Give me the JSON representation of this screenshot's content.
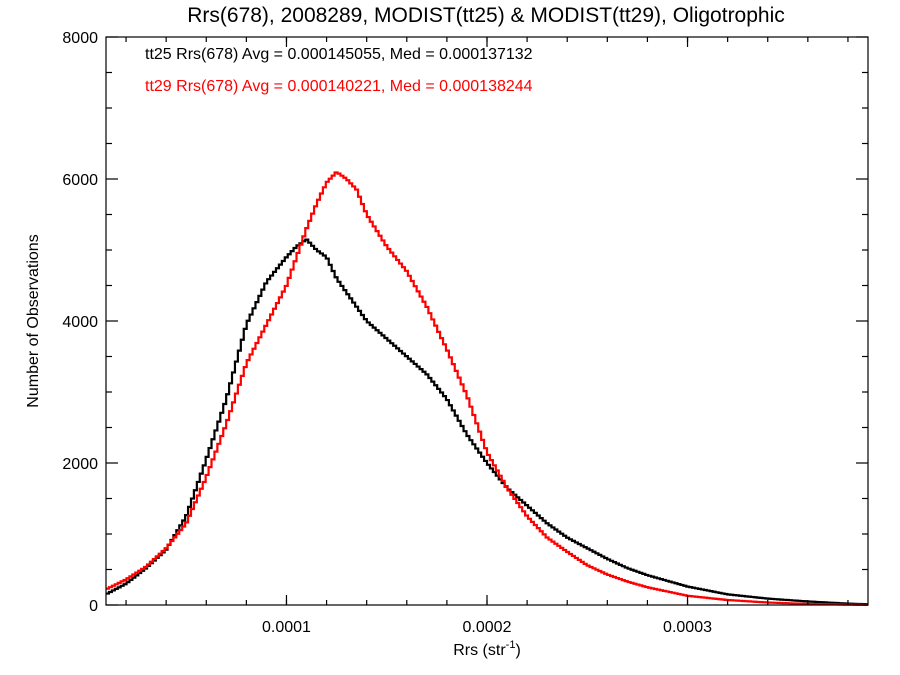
{
  "chart_data": {
    "type": "line",
    "title": "Rrs(678), 2008289, MODIST(tt25) & MODIST(tt29), Oligotrophic",
    "xlabel": "Rrs (str",
    "xlabel_sup": "-1",
    "xlabel_end": ")",
    "ylabel": "Number of Observations",
    "xlim": [
      1e-05,
      0.00039
    ],
    "ylim": [
      0,
      8000
    ],
    "x_ticks": [
      0.0001,
      0.0002,
      0.0003
    ],
    "x_tick_labels": [
      "0.0001",
      "0.0002",
      "0.0003"
    ],
    "y_ticks": [
      0,
      2000,
      4000,
      6000,
      8000
    ],
    "y_tick_labels": [
      "0",
      "2000",
      "4000",
      "6000",
      "8000"
    ],
    "grid": false,
    "legend_position": "top-left",
    "series": [
      {
        "name": "tt25",
        "label": "tt25 Rrs(678) Avg = 0.000145055, Med = 0.000137132",
        "color": "#000000",
        "x": [
          1e-05,
          2e-05,
          3e-05,
          4e-05,
          5e-05,
          6e-05,
          7e-05,
          8e-05,
          9e-05,
          0.0001,
          0.000105,
          0.00011,
          0.000115,
          0.00012,
          0.000125,
          0.00013,
          0.000135,
          0.00014,
          0.00015,
          0.00016,
          0.00017,
          0.00018,
          0.00019,
          0.0002,
          0.00021,
          0.00022,
          0.00023,
          0.00024,
          0.00025,
          0.00026,
          0.00027,
          0.00028,
          0.0003,
          0.00032,
          0.00034,
          0.00036,
          0.00038,
          0.00039
        ],
        "y": [
          150,
          300,
          520,
          780,
          1250,
          2050,
          2900,
          3950,
          4550,
          4900,
          5050,
          5150,
          5000,
          4900,
          4600,
          4400,
          4200,
          4000,
          3750,
          3500,
          3250,
          2900,
          2400,
          2000,
          1650,
          1400,
          1150,
          950,
          800,
          650,
          520,
          420,
          260,
          150,
          90,
          50,
          20,
          10
        ]
      },
      {
        "name": "tt29",
        "label": "tt29 Rrs(678) Avg = 0.000140221, Med = 0.000138244",
        "color": "#ff0000",
        "x": [
          1e-05,
          2e-05,
          3e-05,
          4e-05,
          5e-05,
          6e-05,
          7e-05,
          8e-05,
          9e-05,
          0.0001,
          0.000105,
          0.00011,
          0.000115,
          0.00012,
          0.000125,
          0.00013,
          0.000135,
          0.00014,
          0.00015,
          0.00016,
          0.00017,
          0.00018,
          0.00019,
          0.0002,
          0.00021,
          0.00022,
          0.00023,
          0.00024,
          0.00025,
          0.00026,
          0.00027,
          0.00028,
          0.0003,
          0.00032,
          0.00034,
          0.00036,
          0.00038,
          0.00039
        ],
        "y": [
          220,
          360,
          540,
          800,
          1150,
          1800,
          2550,
          3400,
          3950,
          4500,
          4900,
          5300,
          5650,
          5950,
          6100,
          6000,
          5850,
          5500,
          5050,
          4700,
          4200,
          3600,
          2950,
          2150,
          1650,
          1250,
          950,
          750,
          560,
          430,
          330,
          250,
          130,
          70,
          35,
          15,
          5,
          2
        ]
      }
    ]
  }
}
